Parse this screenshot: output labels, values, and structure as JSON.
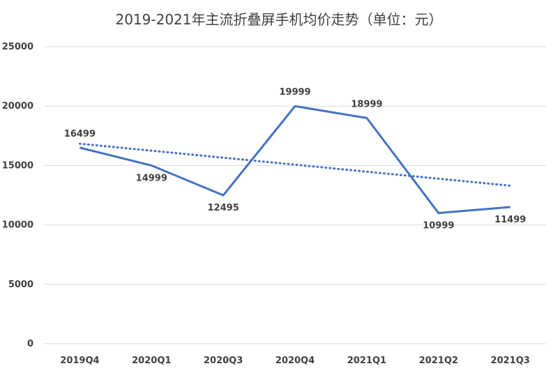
{
  "chart_data": {
    "type": "line",
    "title": "2019-2021年主流折叠屏手机均价走势（单位：元）",
    "categories": [
      "2019Q4",
      "2020Q1",
      "2020Q3",
      "2020Q4",
      "2021Q1",
      "2021Q2",
      "2021Q3"
    ],
    "series": [
      {
        "values": [
          16499,
          14999,
          12495,
          19999,
          18999,
          10999,
          11499
        ],
        "color": "#4472c4"
      }
    ],
    "trendline": {
      "type": "linear",
      "style": "dotted",
      "color": "#4472c4"
    },
    "data_labels": [
      "16499",
      "14999",
      "12495",
      "19999",
      "18999",
      "10999",
      "11499"
    ],
    "ylim": [
      0,
      25000
    ],
    "yticks": [
      0,
      5000,
      10000,
      15000,
      20000,
      25000
    ],
    "grid": true,
    "legend": "none"
  }
}
